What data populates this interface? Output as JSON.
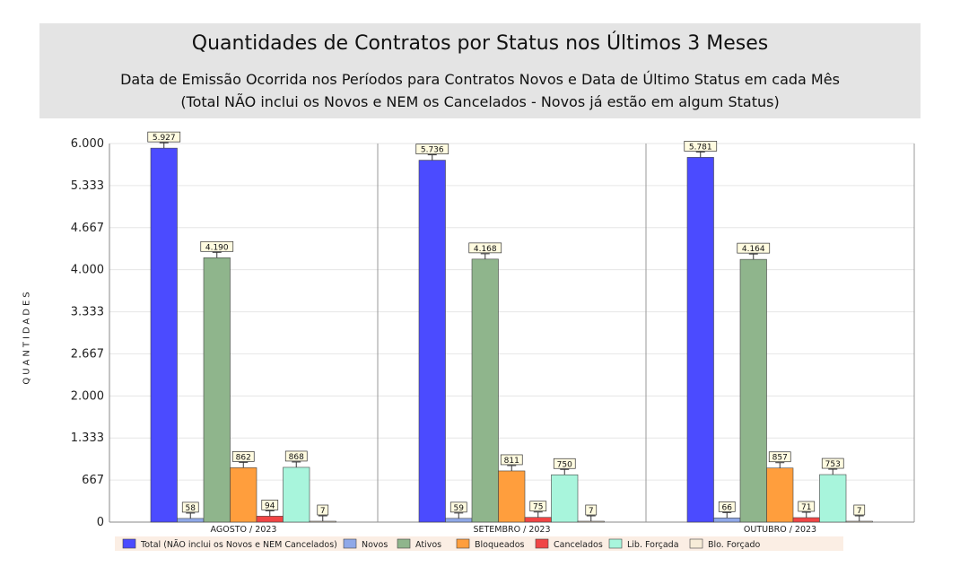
{
  "chart_data": {
    "type": "bar",
    "title": "Quantidades de Contratos por Status nos Últimos 3 Meses",
    "subtitle_line1": "Data de Emissão Ocorrida nos Períodos para Contratos Novos e Data de Último Status em cada Mês",
    "subtitle_line2": "(Total NÃO inclui os Novos e NEM os Cancelados - Novos já estão em algum Status)",
    "ylabel": "QUANTIDADES",
    "ylim": [
      0,
      6000
    ],
    "yticks": [
      0,
      667,
      1333,
      2000,
      2667,
      3333,
      4000,
      4667,
      5333,
      6000
    ],
    "ytick_labels": [
      "0",
      "667",
      "1.333",
      "2.000",
      "2.667",
      "3.333",
      "4.000",
      "4.667",
      "5.333",
      "6.000"
    ],
    "categories": [
      "AGOSTO / 2023",
      "SETEMBRO / 2023",
      "OUTUBRO / 2023"
    ],
    "series": [
      {
        "name": "Total (NÃO inclui os Novos e NEM Cancelados)",
        "color": "#4b4bff",
        "values": [
          5927,
          5736,
          5781
        ],
        "labels": [
          "5.927",
          "5.736",
          "5.781"
        ]
      },
      {
        "name": "Novos",
        "color": "#8fa8e8",
        "values": [
          58,
          59,
          66
        ],
        "labels": [
          "58",
          "59",
          "66"
        ]
      },
      {
        "name": "Ativos",
        "color": "#8fb58c",
        "values": [
          4190,
          4168,
          4164
        ],
        "labels": [
          "4.190",
          "4.168",
          "4.164"
        ]
      },
      {
        "name": "Bloqueados",
        "color": "#ff9e3d",
        "values": [
          862,
          811,
          857
        ],
        "labels": [
          "862",
          "811",
          "857"
        ]
      },
      {
        "name": "Cancelados",
        "color": "#f04545",
        "values": [
          94,
          75,
          71
        ],
        "labels": [
          "94",
          "75",
          "71"
        ]
      },
      {
        "name": "Lib. Forçada",
        "color": "#a8f5dc",
        "values": [
          868,
          750,
          753
        ],
        "labels": [
          "868",
          "750",
          "753"
        ]
      },
      {
        "name": "Blo. Forçado",
        "color": "#f7ecd8",
        "values": [
          7,
          7,
          7
        ],
        "labels": [
          "7",
          "7",
          "7"
        ]
      }
    ],
    "grid": true,
    "legend_position": "bottom"
  }
}
